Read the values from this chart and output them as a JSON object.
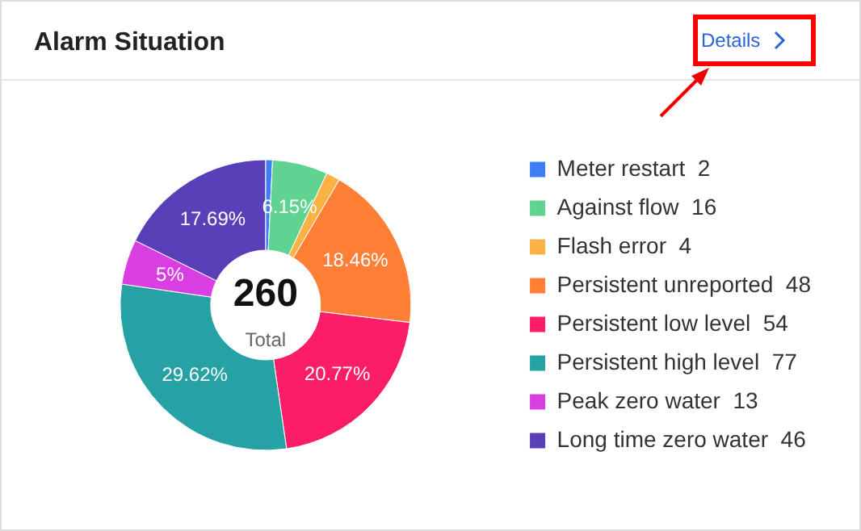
{
  "chart_data": {
    "type": "donut",
    "title": "Alarm Situation",
    "categories": [
      "Meter restart  2",
      "Against flow  16",
      "Flash error  4",
      "Persistent unreported  48",
      "Persistent low level  54",
      "Persistent high level  77",
      "Peak zero water  13",
      "Long time zero water  46"
    ],
    "values": [
      0.77,
      6.15,
      1.54,
      18.46,
      20.77,
      29.62,
      5,
      17.69
    ],
    "colors": [
      "#3d7ef5",
      "#5fd38f",
      "#fbb244",
      "#ff7f36",
      "#fb1d68",
      "#27a2a4",
      "#d83ee2",
      "#5a40b8"
    ],
    "value_labels": [
      null,
      "6.15%",
      null,
      "18.46%",
      "20.77%",
      "29.62%",
      "5%",
      "17.69%"
    ],
    "legend": "right",
    "annotations": [
      "260",
      "Total",
      "Details"
    ]
  }
}
